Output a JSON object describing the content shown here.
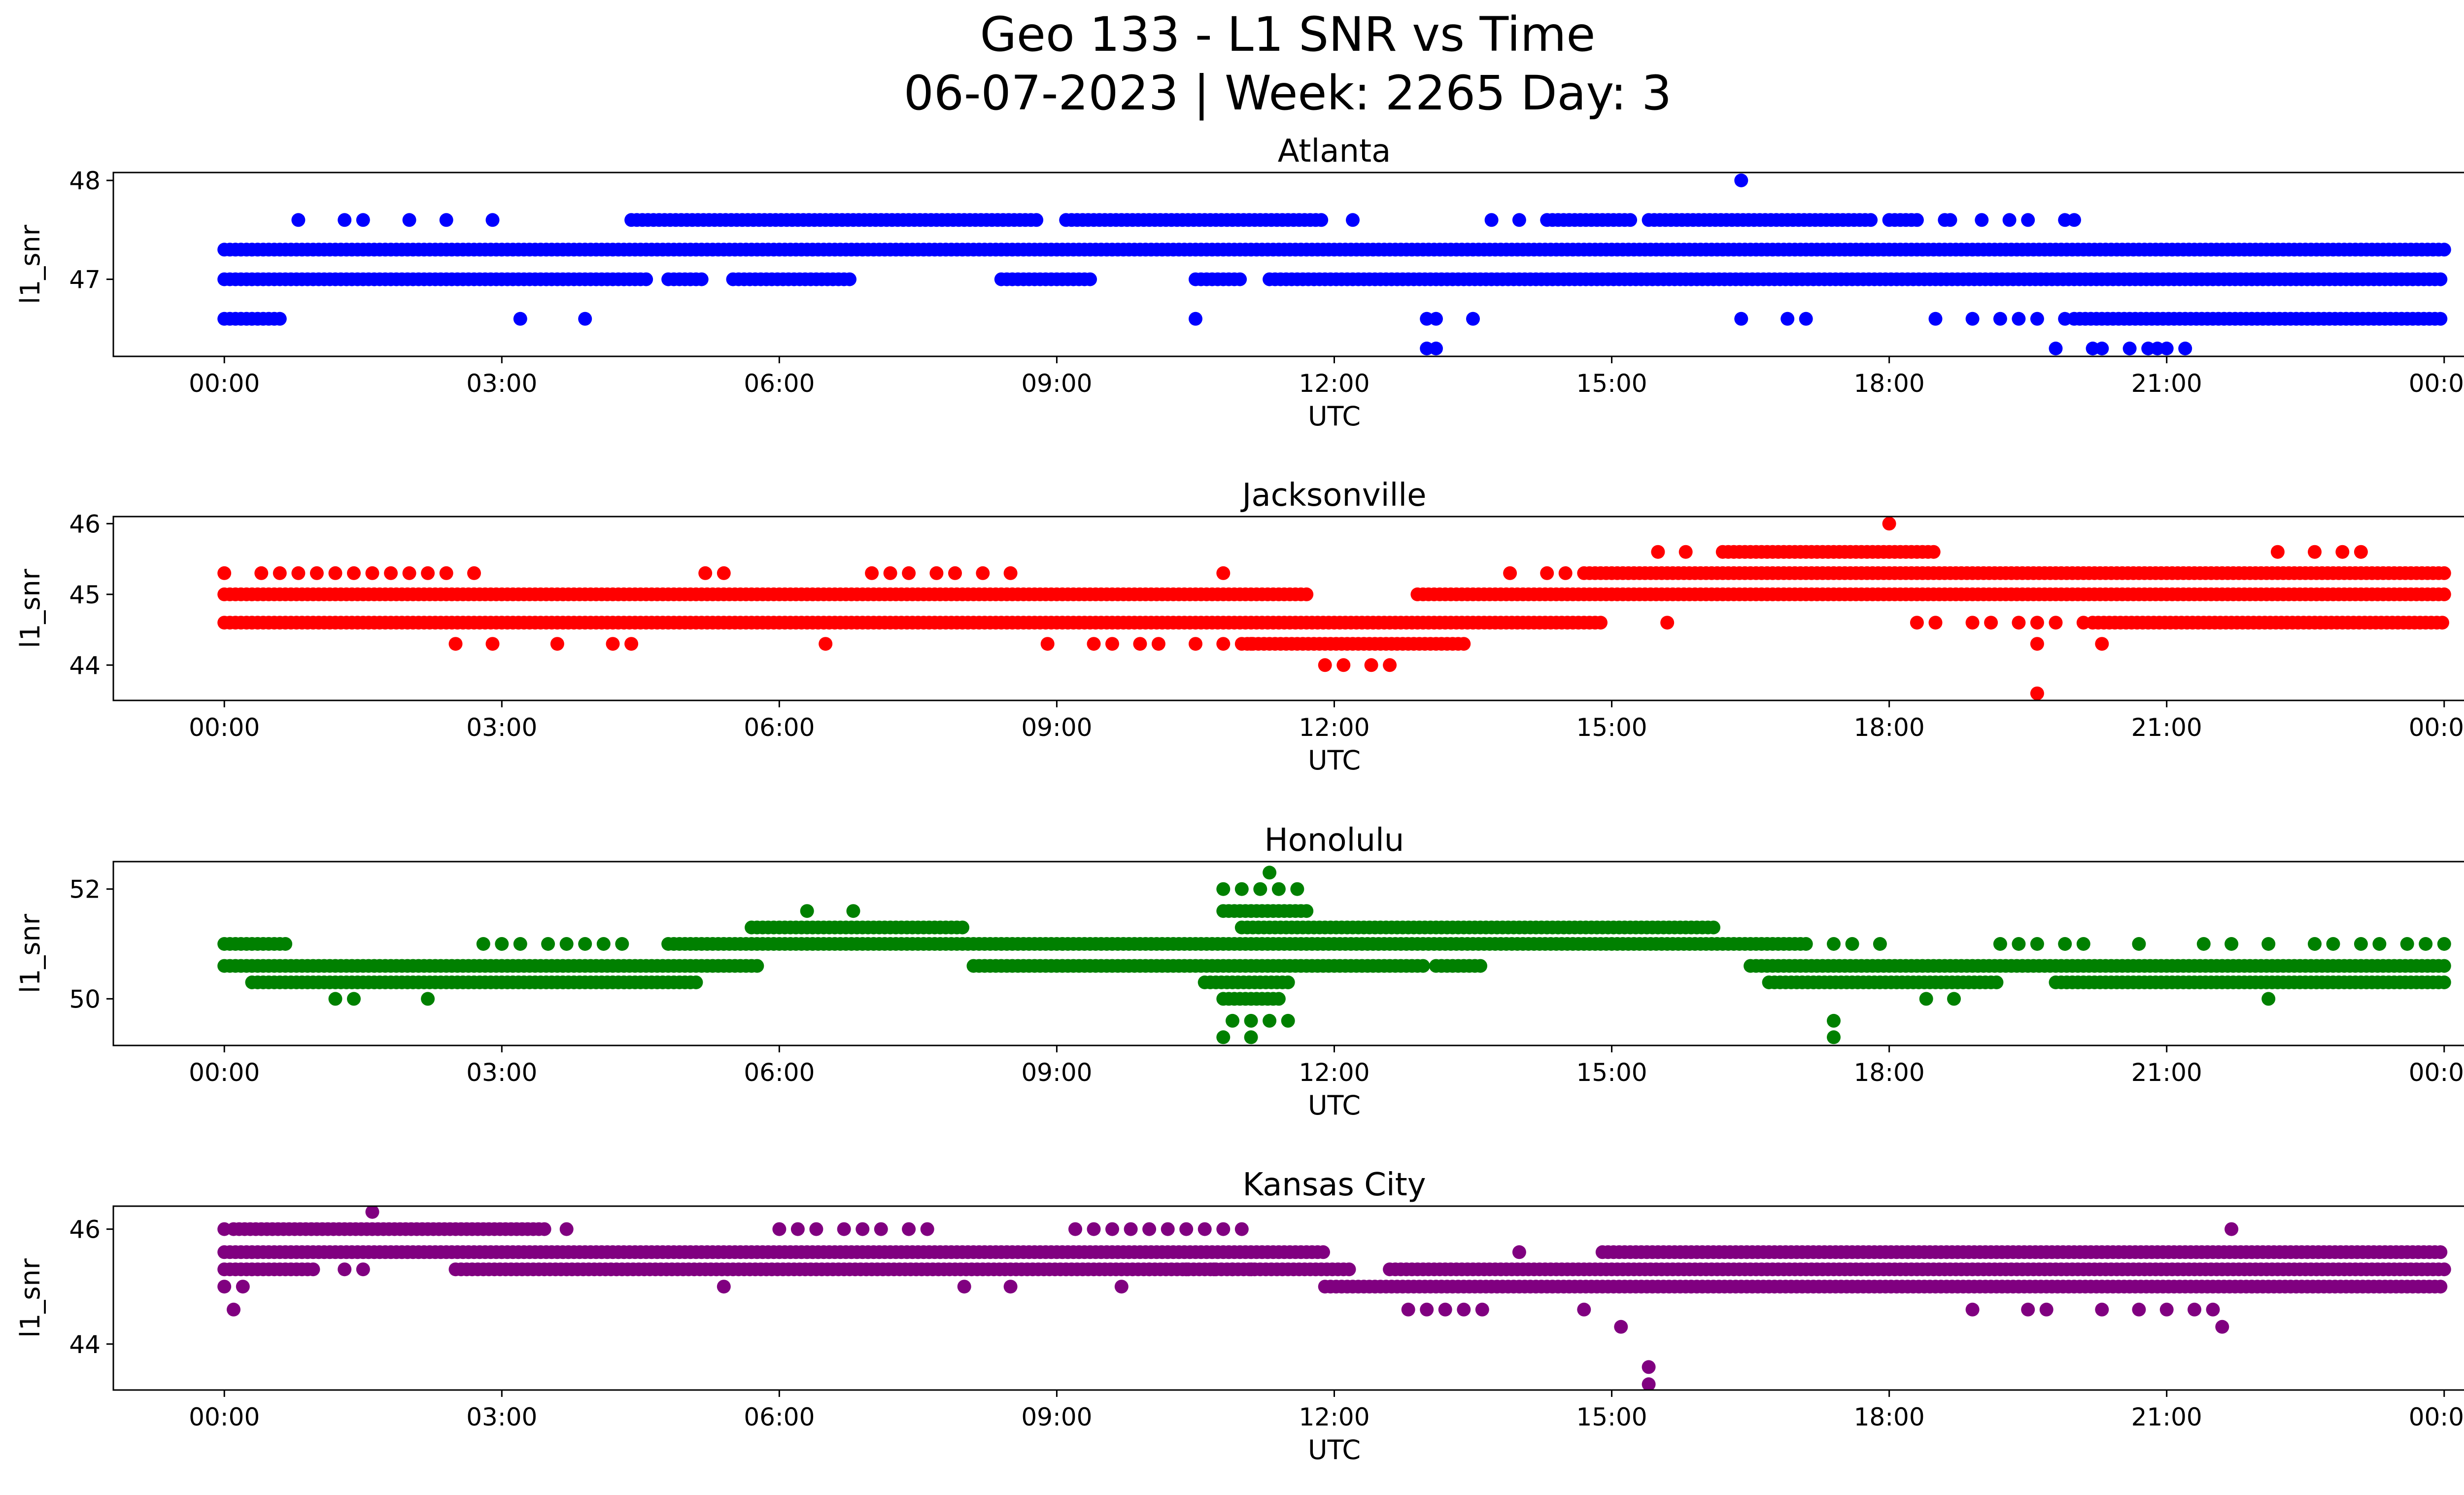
{
  "figure": {
    "title_line1": "Geo 133 - L1 SNR vs Time",
    "title_line2": "06-07-2023 | Week: 2265 Day: 3"
  },
  "chart_data": [
    {
      "type": "scatter",
      "title": "Atlanta",
      "xlabel": "UTC",
      "ylabel": "l1_snr",
      "color": "#0000ff",
      "x_unit": "hours UTC",
      "xlim": [
        -1.2,
        25.2
      ],
      "ylim": [
        46.22,
        48.08
      ],
      "xticks": [
        0,
        3,
        6,
        9,
        12,
        15,
        18,
        21,
        24
      ],
      "xticklabels": [
        "00:00",
        "03:00",
        "06:00",
        "09:00",
        "12:00",
        "15:00",
        "18:00",
        "21:00",
        "00:00"
      ],
      "yticks": [
        47,
        48
      ],
      "yticklabels": [
        "47",
        "48"
      ],
      "bands": [
        {
          "y": 47.3,
          "segments": [
            [
              0,
              24
            ]
          ]
        },
        {
          "y": 47.0,
          "segments": [
            [
              0,
              4.6
            ],
            [
              4.8,
              5.2
            ],
            [
              5.5,
              6.8
            ],
            [
              8.4,
              9.4
            ],
            [
              10.5,
              11.0
            ],
            [
              11.3,
              24
            ]
          ]
        },
        {
          "y": 47.6,
          "segments": [
            [
              4.4,
              8.8
            ],
            [
              9.1,
              11.9
            ],
            [
              14.3,
              15.2
            ],
            [
              15.4,
              17.8
            ],
            [
              18.0,
              18.3
            ],
            [
              18.6,
              18.7
            ]
          ]
        },
        {
          "y": 46.6,
          "segments": [
            [
              0,
              0.6
            ],
            [
              20.0,
              24
            ]
          ]
        }
      ],
      "points": [
        [
          0.8,
          47.6
        ],
        [
          1.3,
          47.6
        ],
        [
          1.5,
          47.6
        ],
        [
          2.0,
          47.6
        ],
        [
          2.4,
          47.6
        ],
        [
          2.9,
          47.6
        ],
        [
          12.2,
          47.6
        ],
        [
          13.7,
          47.6
        ],
        [
          14.0,
          47.6
        ],
        [
          19.0,
          47.6
        ],
        [
          19.3,
          47.6
        ],
        [
          19.5,
          47.6
        ],
        [
          19.9,
          47.6
        ],
        [
          20.0,
          47.6
        ],
        [
          3.2,
          46.6
        ],
        [
          3.9,
          46.6
        ],
        [
          10.5,
          46.6
        ],
        [
          13.0,
          46.6
        ],
        [
          13.1,
          46.6
        ],
        [
          13.5,
          46.6
        ],
        [
          16.4,
          46.6
        ],
        [
          16.9,
          46.6
        ],
        [
          17.1,
          46.6
        ],
        [
          18.5,
          46.6
        ],
        [
          18.9,
          46.6
        ],
        [
          19.2,
          46.6
        ],
        [
          19.4,
          46.6
        ],
        [
          19.6,
          46.6
        ],
        [
          19.9,
          46.6
        ],
        [
          13.0,
          46.3
        ],
        [
          13.1,
          46.3
        ],
        [
          19.8,
          46.3
        ],
        [
          20.2,
          46.3
        ],
        [
          20.3,
          46.3
        ],
        [
          20.6,
          46.3
        ],
        [
          20.8,
          46.3
        ],
        [
          20.9,
          46.3
        ],
        [
          21.0,
          46.3
        ],
        [
          21.2,
          46.3
        ],
        [
          16.4,
          48.0
        ]
      ]
    },
    {
      "type": "scatter",
      "title": "Jacksonville",
      "xlabel": "UTC",
      "ylabel": "l1_snr",
      "color": "#ff0000",
      "x_unit": "hours UTC",
      "xlim": [
        -1.2,
        25.2
      ],
      "ylim": [
        43.5,
        46.1
      ],
      "xticks": [
        0,
        3,
        6,
        9,
        12,
        15,
        18,
        21,
        24
      ],
      "xticklabels": [
        "00:00",
        "03:00",
        "06:00",
        "09:00",
        "12:00",
        "15:00",
        "18:00",
        "21:00",
        "00:00"
      ],
      "yticks": [
        44,
        45,
        46
      ],
      "yticklabels": [
        "44",
        "45",
        "46"
      ],
      "bands": [
        {
          "y": 45.0,
          "segments": [
            [
              0,
              11.7
            ],
            [
              12.9,
              24
            ]
          ]
        },
        {
          "y": 44.6,
          "segments": [
            [
              0,
              14.9
            ]
          ]
        },
        {
          "y": 44.3,
          "segments": [
            [
              11.0,
              13.4
            ]
          ]
        },
        {
          "y": 45.3,
          "segments": [
            [
              14.7,
              24
            ]
          ]
        },
        {
          "y": 45.6,
          "segments": [
            [
              16.2,
              18.5
            ]
          ]
        },
        {
          "y": 44.6,
          "segments": [
            [
              20.2,
              24
            ]
          ]
        }
      ],
      "points": [
        [
          0.0,
          45.3
        ],
        [
          0.4,
          45.3
        ],
        [
          0.6,
          45.3
        ],
        [
          0.8,
          45.3
        ],
        [
          1.0,
          45.3
        ],
        [
          1.2,
          45.3
        ],
        [
          1.4,
          45.3
        ],
        [
          1.6,
          45.3
        ],
        [
          1.8,
          45.3
        ],
        [
          2.0,
          45.3
        ],
        [
          2.2,
          45.3
        ],
        [
          2.4,
          45.3
        ],
        [
          2.7,
          45.3
        ],
        [
          5.2,
          45.3
        ],
        [
          5.4,
          45.3
        ],
        [
          7.0,
          45.3
        ],
        [
          7.2,
          45.3
        ],
        [
          7.4,
          45.3
        ],
        [
          7.7,
          45.3
        ],
        [
          7.9,
          45.3
        ],
        [
          8.2,
          45.3
        ],
        [
          8.5,
          45.3
        ],
        [
          10.8,
          45.3
        ],
        [
          13.9,
          45.3
        ],
        [
          14.3,
          45.3
        ],
        [
          14.5,
          45.3
        ],
        [
          2.5,
          44.3
        ],
        [
          2.9,
          44.3
        ],
        [
          3.6,
          44.3
        ],
        [
          4.2,
          44.3
        ],
        [
          4.4,
          44.3
        ],
        [
          6.5,
          44.3
        ],
        [
          8.9,
          44.3
        ],
        [
          9.4,
          44.3
        ],
        [
          9.6,
          44.3
        ],
        [
          9.9,
          44.3
        ],
        [
          10.1,
          44.3
        ],
        [
          10.5,
          44.3
        ],
        [
          10.8,
          44.3
        ],
        [
          11.1,
          44.3
        ],
        [
          11.9,
          44.0
        ],
        [
          12.1,
          44.0
        ],
        [
          12.4,
          44.0
        ],
        [
          12.6,
          44.0
        ],
        [
          15.6,
          44.6
        ],
        [
          18.3,
          44.6
        ],
        [
          18.5,
          44.6
        ],
        [
          18.9,
          44.6
        ],
        [
          19.1,
          44.6
        ],
        [
          19.4,
          44.6
        ],
        [
          19.6,
          44.6
        ],
        [
          19.8,
          44.6
        ],
        [
          20.1,
          44.6
        ],
        [
          19.6,
          44.3
        ],
        [
          20.3,
          44.3
        ],
        [
          15.5,
          45.6
        ],
        [
          15.8,
          45.6
        ],
        [
          22.2,
          45.6
        ],
        [
          22.6,
          45.6
        ],
        [
          22.9,
          45.6
        ],
        [
          23.1,
          45.6
        ],
        [
          18.0,
          46.0
        ],
        [
          19.6,
          43.6
        ]
      ]
    },
    {
      "type": "scatter",
      "title": "Honolulu",
      "xlabel": "UTC",
      "ylabel": "l1_snr",
      "color": "#008000",
      "x_unit": "hours UTC",
      "xlim": [
        -1.2,
        25.2
      ],
      "ylim": [
        49.15,
        52.5
      ],
      "xticks": [
        0,
        3,
        6,
        9,
        12,
        15,
        18,
        21,
        24
      ],
      "xticklabels": [
        "00:00",
        "03:00",
        "06:00",
        "09:00",
        "12:00",
        "15:00",
        "18:00",
        "21:00",
        "00:00"
      ],
      "yticks": [
        50,
        52
      ],
      "yticklabels": [
        "50",
        "52"
      ],
      "bands": [
        {
          "y": 50.6,
          "segments": [
            [
              0,
              5.8
            ],
            [
              8.1,
              13.0
            ],
            [
              13.1,
              13.6
            ],
            [
              16.5,
              24
            ]
          ]
        },
        {
          "y": 50.3,
          "segments": [
            [
              0.3,
              5.1
            ],
            [
              10.6,
              11.5
            ],
            [
              16.7,
              19.2
            ],
            [
              19.8,
              24
            ]
          ]
        },
        {
          "y": 51.0,
          "segments": [
            [
              0,
              0.7
            ],
            [
              4.8,
              17.1
            ]
          ]
        },
        {
          "y": 51.3,
          "segments": [
            [
              5.7,
              8.0
            ],
            [
              11.0,
              16.1
            ]
          ]
        },
        {
          "y": 51.6,
          "segments": [
            [
              10.8,
              11.7
            ]
          ]
        },
        {
          "y": 50.0,
          "segments": [
            [
              10.8,
              11.4
            ]
          ]
        }
      ],
      "points": [
        [
          2.8,
          51.0
        ],
        [
          3.0,
          51.0
        ],
        [
          3.2,
          51.0
        ],
        [
          3.5,
          51.0
        ],
        [
          3.7,
          51.0
        ],
        [
          3.9,
          51.0
        ],
        [
          4.1,
          51.0
        ],
        [
          4.3,
          51.0
        ],
        [
          17.4,
          51.0
        ],
        [
          17.6,
          51.0
        ],
        [
          17.9,
          51.0
        ],
        [
          19.2,
          51.0
        ],
        [
          19.4,
          51.0
        ],
        [
          19.6,
          51.0
        ],
        [
          19.9,
          51.0
        ],
        [
          20.1,
          51.0
        ],
        [
          20.7,
          51.0
        ],
        [
          21.4,
          51.0
        ],
        [
          21.7,
          51.0
        ],
        [
          22.1,
          51.0
        ],
        [
          22.6,
          51.0
        ],
        [
          22.8,
          51.0
        ],
        [
          23.1,
          51.0
        ],
        [
          23.3,
          51.0
        ],
        [
          23.6,
          51.0
        ],
        [
          23.8,
          51.0
        ],
        [
          24.0,
          51.0
        ],
        [
          6.3,
          51.6
        ],
        [
          6.8,
          51.6
        ],
        [
          10.8,
          52.0
        ],
        [
          11.0,
          52.0
        ],
        [
          11.2,
          52.0
        ],
        [
          11.4,
          52.0
        ],
        [
          11.6,
          52.0
        ],
        [
          11.3,
          52.3
        ],
        [
          1.2,
          50.0
        ],
        [
          1.4,
          50.0
        ],
        [
          2.2,
          50.0
        ],
        [
          18.4,
          50.0
        ],
        [
          18.7,
          50.0
        ],
        [
          22.1,
          50.0
        ],
        [
          10.9,
          49.6
        ],
        [
          11.1,
          49.6
        ],
        [
          11.3,
          49.6
        ],
        [
          11.5,
          49.6
        ],
        [
          10.8,
          49.3
        ],
        [
          11.1,
          49.3
        ],
        [
          17.4,
          49.6
        ],
        [
          17.4,
          49.3
        ]
      ]
    },
    {
      "type": "scatter",
      "title": "Kansas City",
      "xlabel": "UTC",
      "ylabel": "l1_snr",
      "color": "#800080",
      "x_unit": "hours UTC",
      "xlim": [
        -1.2,
        25.2
      ],
      "ylim": [
        43.2,
        46.4
      ],
      "xticks": [
        0,
        3,
        6,
        9,
        12,
        15,
        18,
        21,
        24
      ],
      "xticklabels": [
        "00:00",
        "03:00",
        "06:00",
        "09:00",
        "12:00",
        "15:00",
        "18:00",
        "21:00",
        "00:00"
      ],
      "yticks": [
        44,
        46
      ],
      "yticklabels": [
        "44",
        "46"
      ],
      "bands": [
        {
          "y": 45.6,
          "segments": [
            [
              0,
              11.9
            ],
            [
              14.9,
              24
            ]
          ]
        },
        {
          "y": 45.3,
          "segments": [
            [
              0,
              1.0
            ],
            [
              2.5,
              12.2
            ],
            [
              12.6,
              24
            ]
          ]
        },
        {
          "y": 46.0,
          "segments": [
            [
              0.1,
              3.5
            ]
          ]
        },
        {
          "y": 45.0,
          "segments": [
            [
              11.9,
              24
            ]
          ]
        }
      ],
      "points": [
        [
          0.0,
          46.0
        ],
        [
          3.7,
          46.0
        ],
        [
          6.0,
          46.0
        ],
        [
          6.2,
          46.0
        ],
        [
          6.4,
          46.0
        ],
        [
          6.7,
          46.0
        ],
        [
          6.9,
          46.0
        ],
        [
          7.1,
          46.0
        ],
        [
          7.4,
          46.0
        ],
        [
          7.6,
          46.0
        ],
        [
          9.2,
          46.0
        ],
        [
          9.4,
          46.0
        ],
        [
          9.6,
          46.0
        ],
        [
          9.8,
          46.0
        ],
        [
          10.0,
          46.0
        ],
        [
          10.2,
          46.0
        ],
        [
          10.4,
          46.0
        ],
        [
          10.6,
          46.0
        ],
        [
          10.8,
          46.0
        ],
        [
          11.0,
          46.0
        ],
        [
          21.7,
          46.0
        ],
        [
          1.6,
          46.3
        ],
        [
          0.0,
          45.0
        ],
        [
          0.2,
          45.0
        ],
        [
          5.4,
          45.0
        ],
        [
          8.0,
          45.0
        ],
        [
          8.5,
          45.0
        ],
        [
          9.7,
          45.0
        ],
        [
          0.1,
          44.6
        ],
        [
          12.8,
          44.6
        ],
        [
          13.0,
          44.6
        ],
        [
          13.2,
          44.6
        ],
        [
          13.4,
          44.6
        ],
        [
          13.6,
          44.6
        ],
        [
          14.7,
          44.6
        ],
        [
          18.9,
          44.6
        ],
        [
          19.5,
          44.6
        ],
        [
          19.7,
          44.6
        ],
        [
          20.3,
          44.6
        ],
        [
          20.7,
          44.6
        ],
        [
          21.0,
          44.6
        ],
        [
          21.3,
          44.6
        ],
        [
          21.5,
          44.6
        ],
        [
          21.6,
          44.3
        ],
        [
          15.1,
          44.3
        ],
        [
          14.0,
          45.6
        ],
        [
          15.4,
          43.6
        ],
        [
          15.4,
          43.3
        ],
        [
          1.3,
          45.3
        ],
        [
          1.5,
          45.3
        ],
        [
          10.0,
          45.3
        ],
        [
          10.4,
          45.3
        ],
        [
          10.7,
          45.3
        ],
        [
          10.9,
          45.3
        ],
        [
          11.1,
          45.3
        ]
      ]
    }
  ]
}
